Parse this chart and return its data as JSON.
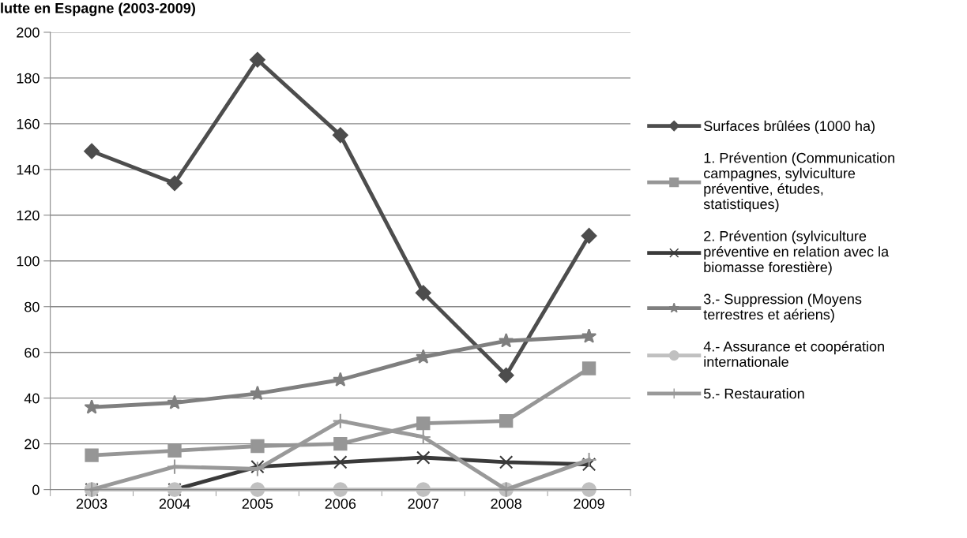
{
  "chart_data": {
    "type": "line",
    "title": "lutte en Espagne (2003-2009)",
    "categories": [
      "2003",
      "2004",
      "2005",
      "2006",
      "2007",
      "2008",
      "2009"
    ],
    "ylim": [
      0,
      200
    ],
    "yticks": [
      0,
      20,
      40,
      60,
      80,
      100,
      120,
      140,
      160,
      180,
      200
    ],
    "grid": "y",
    "legend": "right",
    "series": [
      {
        "name": "Surfaces brûlées (1000 ha)",
        "color": "#4d4d4d",
        "marker": "diamond",
        "values": [
          148,
          134,
          188,
          155,
          86,
          50,
          111
        ]
      },
      {
        "name": "1. Prévention (Communication campagnes, sylviculture préventive, études, statistiques)",
        "color": "#969696",
        "marker": "square",
        "values": [
          15,
          17,
          19,
          20,
          29,
          30,
          53
        ]
      },
      {
        "name": "2. Prévention (sylviculture préventive en relation avec la biomasse forestière)",
        "color": "#3a3a3a",
        "marker": "cross",
        "values": [
          0,
          0,
          10,
          12,
          14,
          12,
          11
        ]
      },
      {
        "name": "3.- Suppression (Moyens terrestres et aériens)",
        "color": "#7f7f7f",
        "marker": "star",
        "values": [
          36,
          38,
          42,
          48,
          58,
          65,
          67
        ]
      },
      {
        "name": "4.- Assurance et coopération internationale",
        "color": "#c0c0c0",
        "marker": "circle",
        "values": [
          0,
          0,
          0,
          0,
          0,
          0,
          0
        ]
      },
      {
        "name": "5.- Restauration",
        "color": "#999999",
        "marker": "plus",
        "values": [
          0,
          10,
          9,
          30,
          23,
          0,
          13
        ]
      }
    ]
  }
}
